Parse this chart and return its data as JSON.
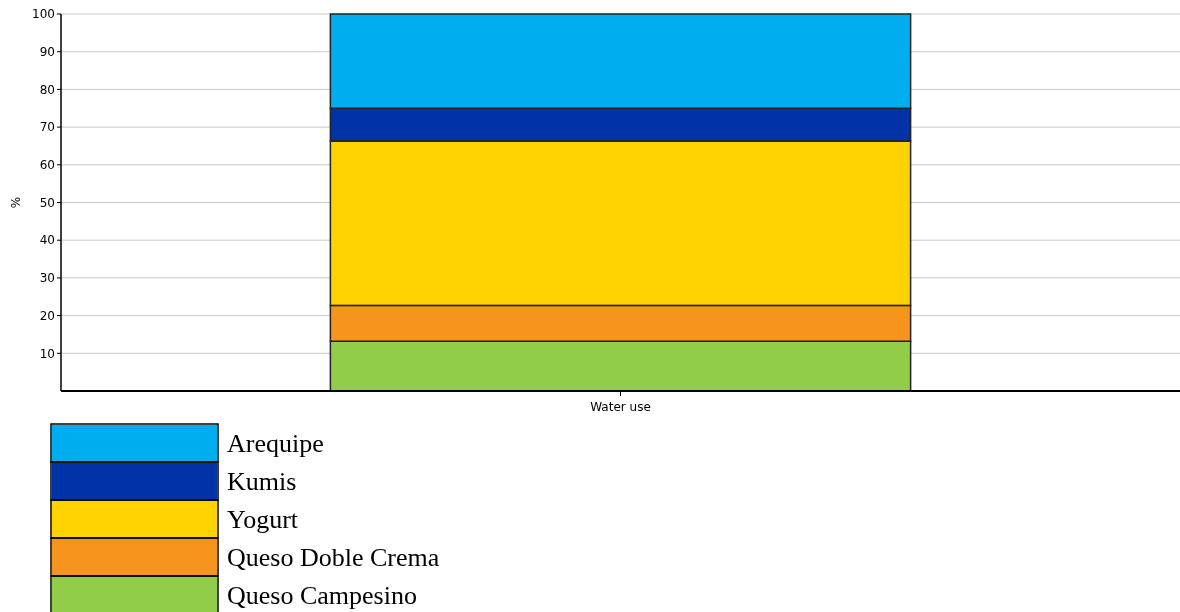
{
  "chart_data": {
    "type": "bar",
    "stacked": true,
    "ylabel": "%",
    "categories": [
      "Water use"
    ],
    "ylim": [
      0,
      100
    ],
    "yticks": [
      10,
      20,
      30,
      40,
      50,
      60,
      70,
      80,
      90,
      100
    ],
    "grid": "y",
    "legend": "bottom left",
    "series": [
      {
        "name": "Queso Campesino",
        "color": "#92cd4a",
        "values": [
          13.2
        ]
      },
      {
        "name": "Queso Doble Crema",
        "color": "#f7941d",
        "values": [
          9.5
        ]
      },
      {
        "name": "Yogurt",
        "color": "#ffd200",
        "values": [
          43.6
        ]
      },
      {
        "name": "Kumis",
        "color": "#0033a8",
        "values": [
          8.7
        ]
      },
      {
        "name": "Arequipe",
        "color": "#00aeef",
        "values": [
          25
        ]
      }
    ]
  }
}
